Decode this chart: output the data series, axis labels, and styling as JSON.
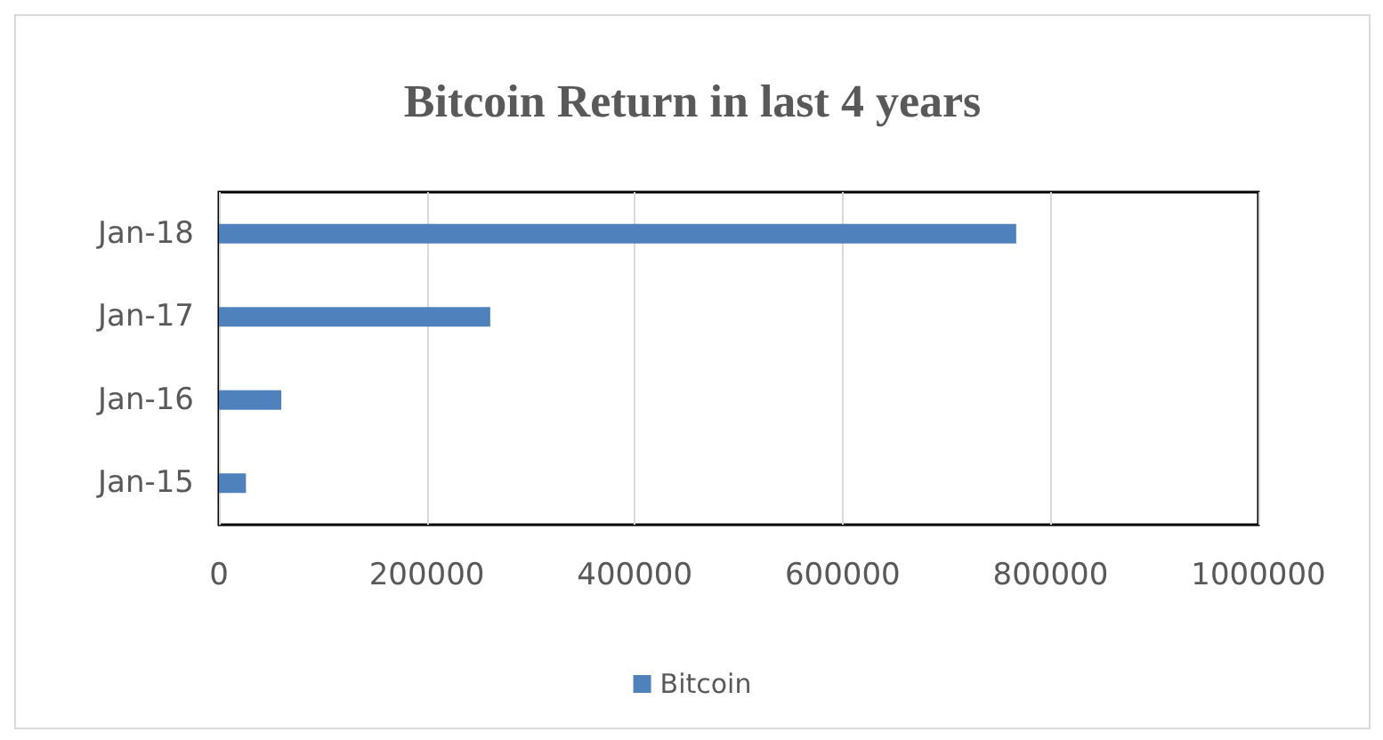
{
  "chart_data": {
    "type": "bar",
    "title": "Bitcoin Return in last 4 years",
    "orientation": "horizontal",
    "categories": [
      "Jan-18",
      "Jan-17",
      "Jan-16",
      "Jan-15"
    ],
    "series": [
      {
        "name": "Bitcoin",
        "color": "#4f81bd",
        "values": [
          767000,
          261000,
          60000,
          26000
        ]
      }
    ],
    "xlim": [
      0,
      1000000
    ],
    "xticks": [
      0,
      200000,
      400000,
      600000,
      800000,
      1000000
    ],
    "grid": "x",
    "legend": "bottom"
  }
}
